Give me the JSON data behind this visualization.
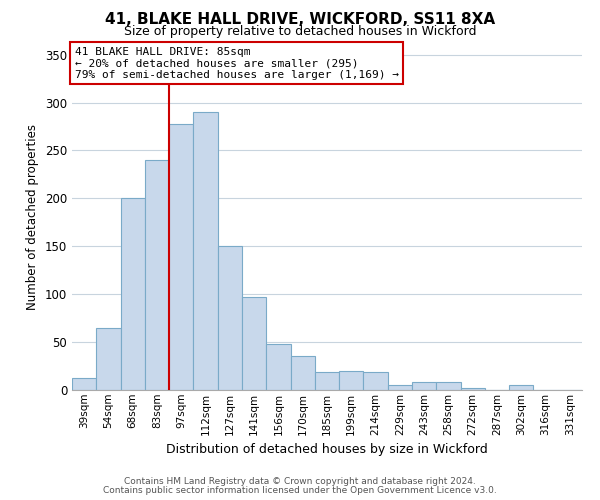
{
  "title": "41, BLAKE HALL DRIVE, WICKFORD, SS11 8XA",
  "subtitle": "Size of property relative to detached houses in Wickford",
  "xlabel": "Distribution of detached houses by size in Wickford",
  "ylabel": "Number of detached properties",
  "bar_labels": [
    "39sqm",
    "54sqm",
    "68sqm",
    "83sqm",
    "97sqm",
    "112sqm",
    "127sqm",
    "141sqm",
    "156sqm",
    "170sqm",
    "185sqm",
    "199sqm",
    "214sqm",
    "229sqm",
    "243sqm",
    "258sqm",
    "272sqm",
    "287sqm",
    "302sqm",
    "316sqm",
    "331sqm"
  ],
  "bar_values": [
    13,
    65,
    200,
    240,
    278,
    290,
    150,
    97,
    48,
    35,
    19,
    20,
    19,
    5,
    8,
    8,
    2,
    0,
    5,
    0,
    0
  ],
  "bar_color": "#c8d8eb",
  "bar_edge_color": "#7aaac8",
  "vline_color": "#cc0000",
  "annotation_line1": "41 BLAKE HALL DRIVE: 85sqm",
  "annotation_line2": "← 20% of detached houses are smaller (295)",
  "annotation_line3": "79% of semi-detached houses are larger (1,169) →",
  "annotation_box_color": "#ffffff",
  "annotation_box_edge": "#cc0000",
  "ylim": [
    0,
    360
  ],
  "yticks": [
    0,
    50,
    100,
    150,
    200,
    250,
    300,
    350
  ],
  "footer_line1": "Contains HM Land Registry data © Crown copyright and database right 2024.",
  "footer_line2": "Contains public sector information licensed under the Open Government Licence v3.0.",
  "bg_color": "#ffffff",
  "grid_color": "#c8d4de",
  "title_fontsize": 11,
  "subtitle_fontsize": 9
}
